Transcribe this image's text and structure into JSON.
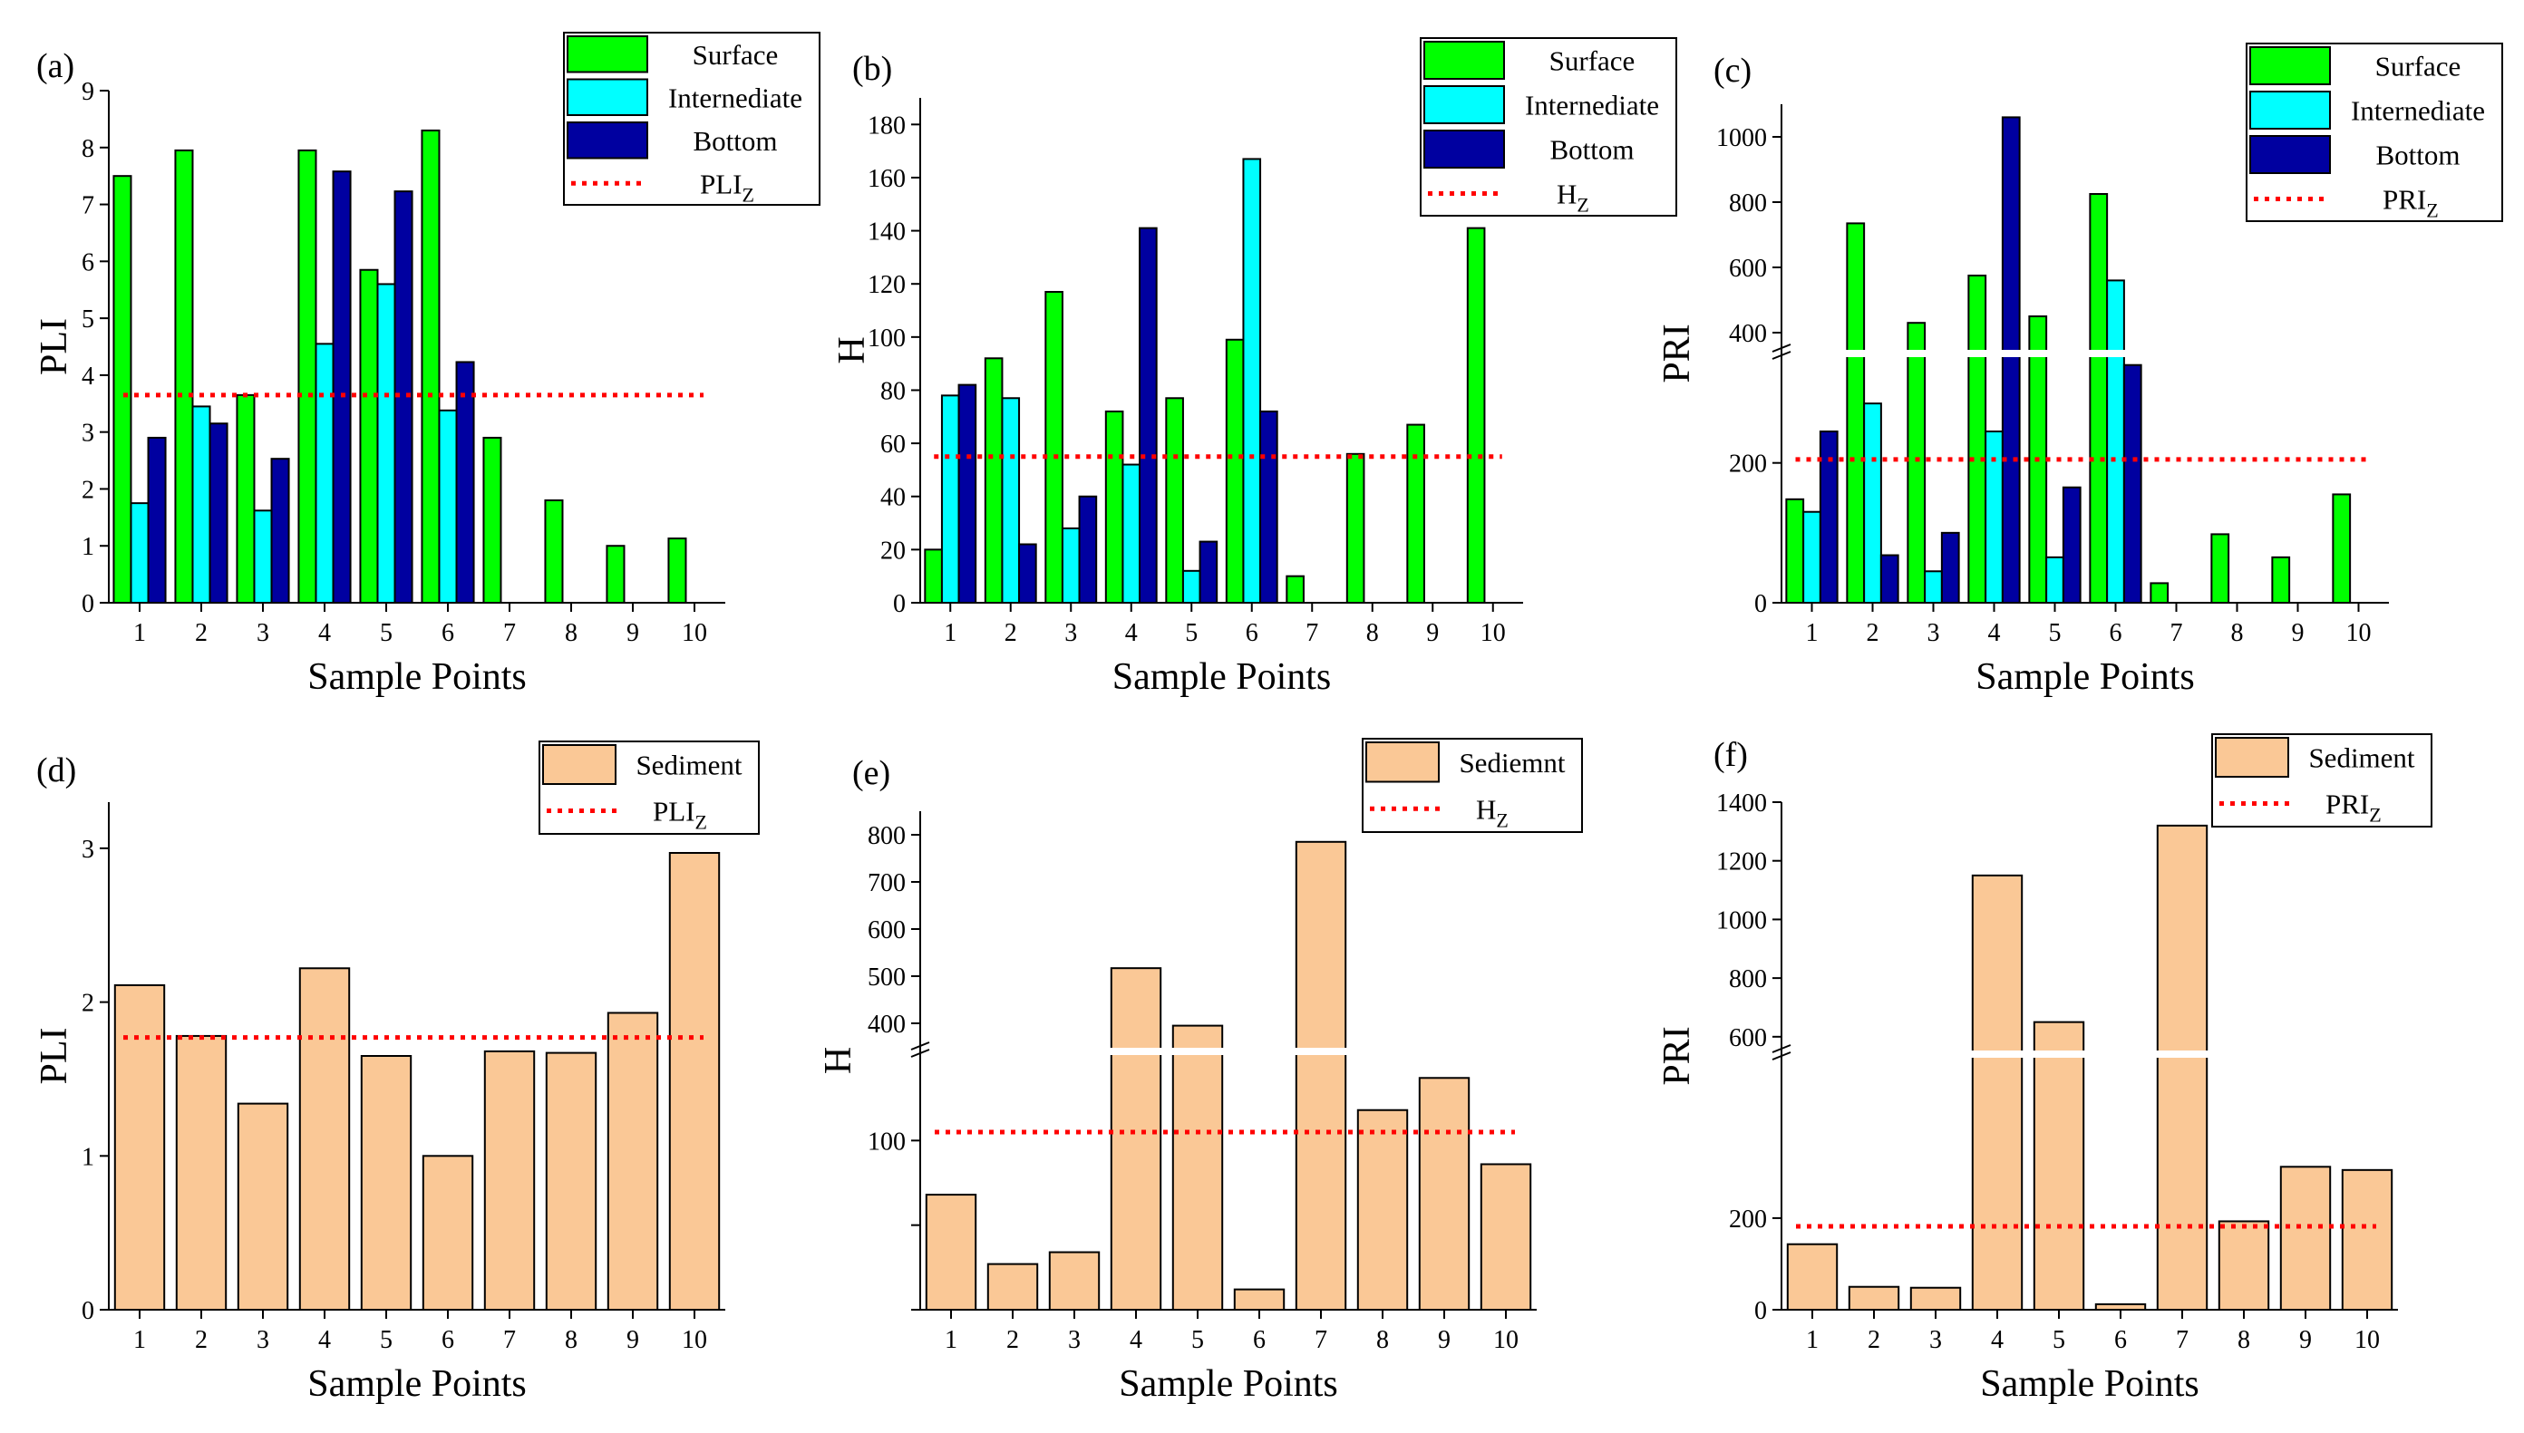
{
  "colors": {
    "surface": "#00FF00",
    "intermediate": "#00FFFF",
    "bottom": "#0000A0",
    "sediment": "#FAC896",
    "threshold": "#FF0000"
  },
  "chart_data": [
    {
      "id": "a",
      "panel_label": "(a)",
      "type": "bar",
      "xlabel": "Sample Points",
      "ylabel": "PLI",
      "categories": [
        "1",
        "2",
        "3",
        "4",
        "5",
        "6",
        "7",
        "8",
        "9",
        "10"
      ],
      "ylim": [
        0,
        9
      ],
      "yticks": [
        "0",
        "1",
        "2",
        "3",
        "4",
        "5",
        "6",
        "7",
        "8",
        "9"
      ],
      "series": [
        {
          "name": "Surface",
          "color_key": "surface",
          "values": [
            7.5,
            7.95,
            3.65,
            7.95,
            5.85,
            8.3,
            2.9,
            1.8,
            1.0,
            1.13
          ]
        },
        {
          "name": "Internediate",
          "color_key": "intermediate",
          "values": [
            1.75,
            3.45,
            1.62,
            4.55,
            5.6,
            3.38,
            null,
            null,
            null,
            null
          ]
        },
        {
          "name": "Bottom",
          "color_key": "bottom",
          "values": [
            2.9,
            3.15,
            2.53,
            7.58,
            7.23,
            4.23,
            null,
            null,
            null,
            null
          ]
        }
      ],
      "threshold": {
        "name": "PLI",
        "sub": "Z",
        "value": 3.65
      }
    },
    {
      "id": "b",
      "panel_label": "(b)",
      "type": "bar",
      "xlabel": "Sample Points",
      "ylabel": "H",
      "categories": [
        "1",
        "2",
        "3",
        "4",
        "5",
        "6",
        "7",
        "8",
        "9",
        "10"
      ],
      "ylim": [
        0,
        190
      ],
      "yticks": [
        "0",
        "20",
        "40",
        "60",
        "80",
        "100",
        "120",
        "140",
        "160",
        "180"
      ],
      "series": [
        {
          "name": "Surface",
          "color_key": "surface",
          "values": [
            20,
            92,
            117,
            72,
            77,
            99,
            10,
            56,
            67,
            141
          ]
        },
        {
          "name": "Internediate",
          "color_key": "intermediate",
          "values": [
            78,
            77,
            28,
            52,
            12,
            167,
            null,
            null,
            null,
            null
          ]
        },
        {
          "name": "Bottom",
          "color_key": "bottom",
          "values": [
            82,
            22,
            40,
            141,
            23,
            72,
            null,
            null,
            null,
            null
          ]
        }
      ],
      "threshold": {
        "name": "H",
        "sub": "Z",
        "value": 55
      }
    },
    {
      "id": "c",
      "panel_label": "(c)",
      "type": "bar",
      "xlabel": "Sample Points",
      "ylabel": "PRI",
      "categories": [
        "1",
        "2",
        "3",
        "4",
        "5",
        "6",
        "7",
        "8",
        "9",
        "10"
      ],
      "broken_axis": {
        "lower": [
          0,
          350
        ],
        "upper": [
          350,
          1100
        ]
      },
      "yticks": [
        "0",
        "200",
        "400",
        "600",
        "800",
        "1000"
      ],
      "series": [
        {
          "name": "Surface",
          "color_key": "surface",
          "values": [
            148,
            735,
            430,
            575,
            450,
            825,
            28,
            98,
            65,
            155
          ]
        },
        {
          "name": "Internediate",
          "color_key": "intermediate",
          "values": [
            130,
            285,
            45,
            245,
            65,
            560,
            null,
            null,
            null,
            null
          ]
        },
        {
          "name": "Bottom",
          "color_key": "bottom",
          "values": [
            245,
            68,
            100,
            1060,
            165,
            340,
            null,
            null,
            null,
            null
          ]
        }
      ],
      "threshold": {
        "name": "PRI",
        "sub": "Z",
        "value": 205
      }
    },
    {
      "id": "d",
      "panel_label": "(d)",
      "type": "bar",
      "xlabel": "Sample Points",
      "ylabel": "PLI",
      "categories": [
        "1",
        "2",
        "3",
        "4",
        "5",
        "6",
        "7",
        "8",
        "9",
        "10"
      ],
      "ylim": [
        0,
        3.3
      ],
      "yticks": [
        "0",
        "1",
        "2",
        "3"
      ],
      "series": [
        {
          "name": "Sediment",
          "color_key": "sediment",
          "values": [
            2.11,
            1.78,
            1.34,
            2.22,
            1.65,
            1.0,
            1.68,
            1.67,
            1.93,
            2.97
          ]
        }
      ],
      "threshold": {
        "name": "PLI",
        "sub": "Z",
        "value": 1.77
      }
    },
    {
      "id": "e",
      "panel_label": "(e)",
      "type": "bar",
      "xlabel": "Sample Points",
      "ylabel": "H",
      "categories": [
        "1",
        "2",
        "3",
        "4",
        "5",
        "6",
        "7",
        "8",
        "9",
        "10"
      ],
      "broken_axis": {
        "lower": [
          0,
          150
        ],
        "upper": [
          350,
          850
        ]
      },
      "yticks": [
        "0",
        "50",
        "100",
        "400",
        "500",
        "600",
        "700",
        "800"
      ],
      "yticks_shown": [
        "",
        "",
        "100",
        "400",
        "500",
        "600",
        "700",
        "800"
      ],
      "series": [
        {
          "name": "Sediemnt",
          "color_key": "sediment",
          "values": [
            68,
            27,
            34,
            517,
            395,
            12,
            785,
            118,
            137,
            86
          ]
        }
      ],
      "threshold": {
        "name": "H",
        "sub": "Z",
        "value": 105
      }
    },
    {
      "id": "f",
      "panel_label": "(f)",
      "type": "bar",
      "xlabel": "Sample Points",
      "ylabel": "PRI",
      "categories": [
        "1",
        "2",
        "3",
        "4",
        "5",
        "6",
        "7",
        "8",
        "9",
        "10"
      ],
      "broken_axis": {
        "lower": [
          0,
          550
        ],
        "upper": [
          550,
          1400
        ]
      },
      "yticks": [
        "0",
        "200",
        "600",
        "800",
        "1000",
        "1200",
        "1400"
      ],
      "series": [
        {
          "name": "Sediment",
          "color_key": "sediment",
          "values": [
            143,
            50,
            48,
            1150,
            650,
            12,
            1320,
            193,
            312,
            305
          ]
        }
      ],
      "threshold": {
        "name": "PRI",
        "sub": "Z",
        "value": 182
      }
    }
  ]
}
